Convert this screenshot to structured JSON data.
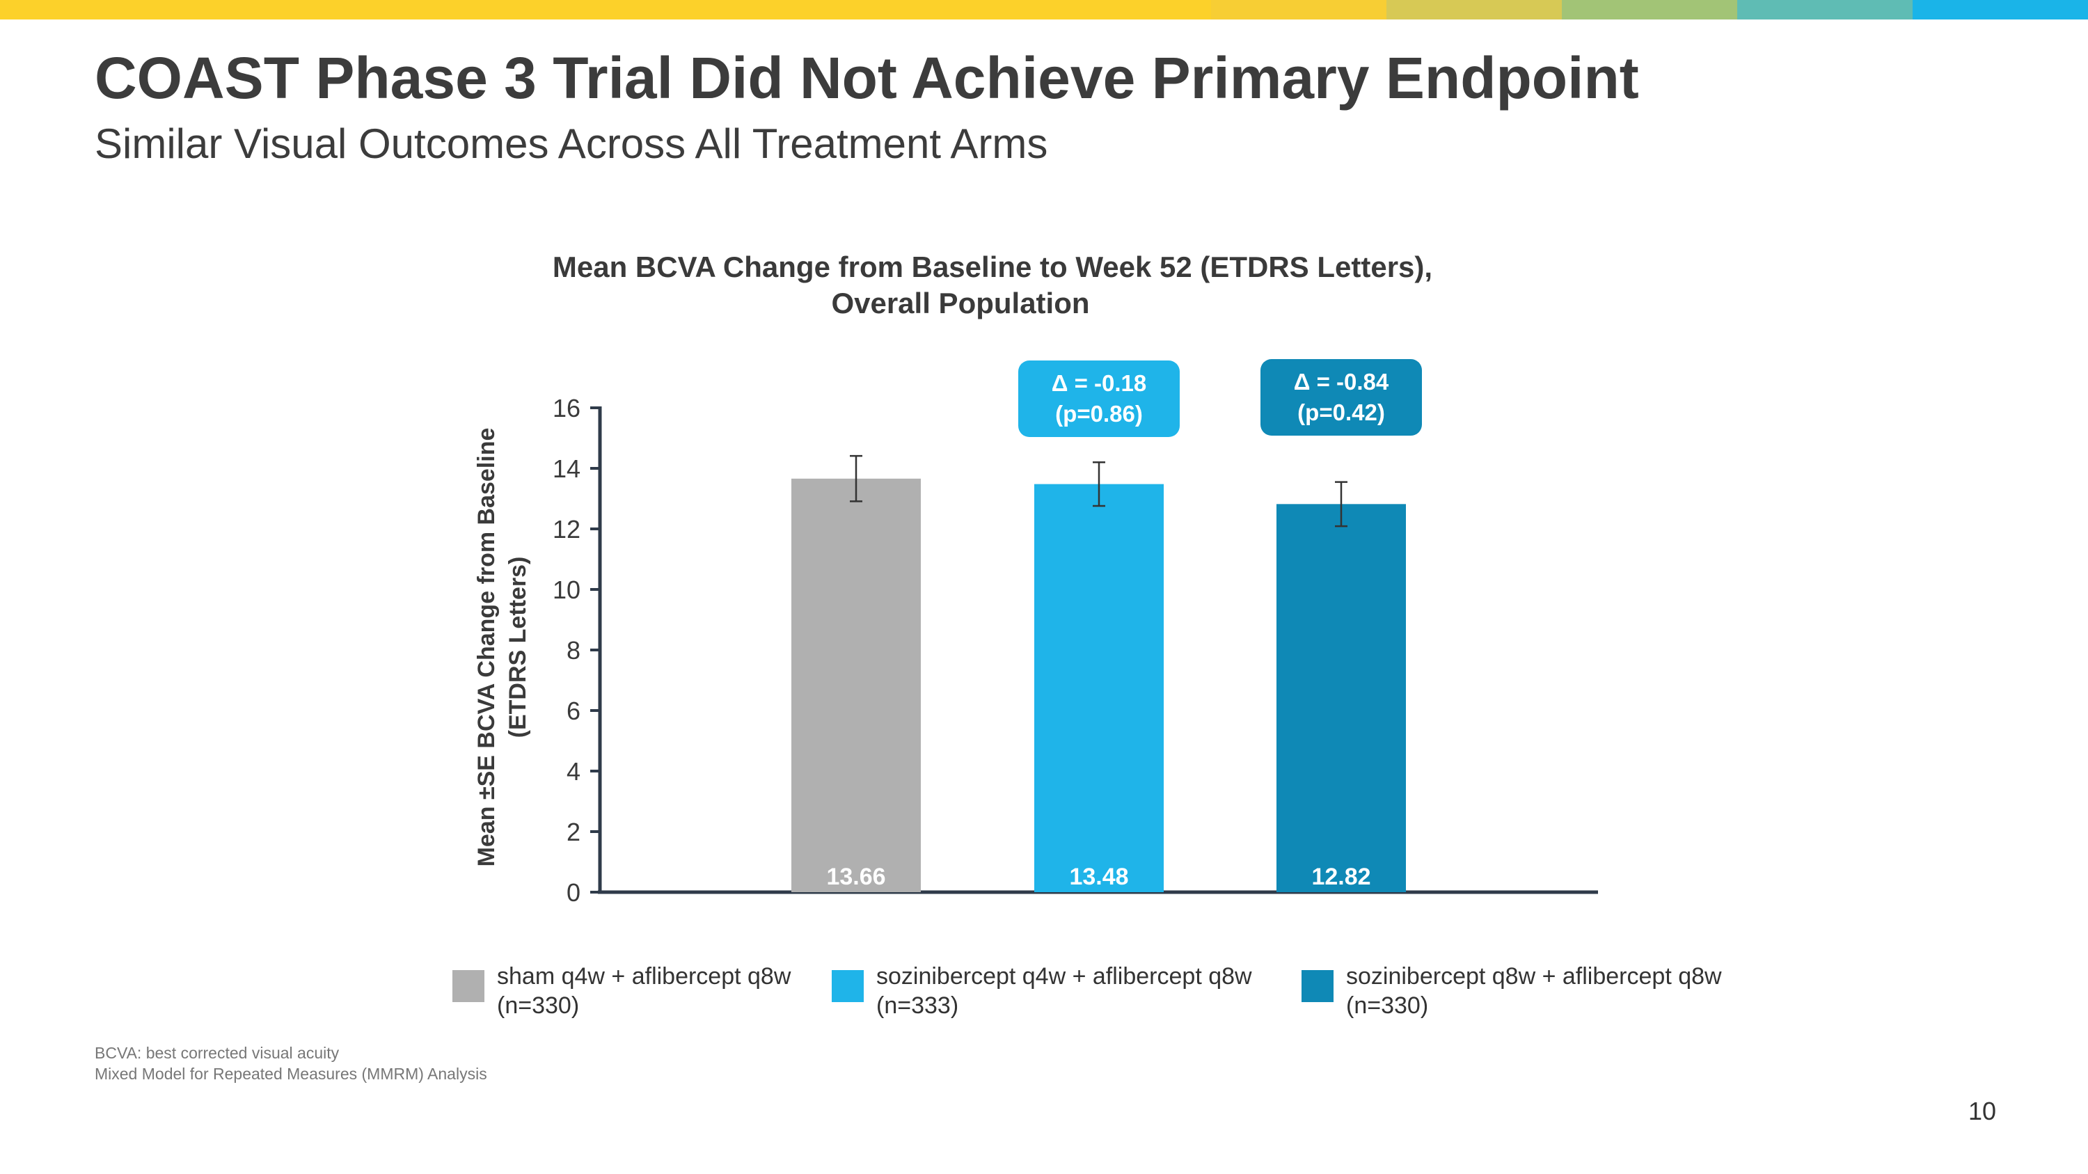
{
  "slide": {
    "title": "COAST Phase 3 Trial Did Not Achieve Primary Endpoint",
    "subtitle": "Similar Visual Outcomes Across All Treatment Arms",
    "page_number": "10",
    "footnotes": [
      "BCVA: best corrected visual acuity",
      "Mixed Model for Repeated Measures (MMRM) Analysis"
    ]
  },
  "colors": {
    "topbar": [
      "#fcd12a",
      "#f7ce34",
      "#d7c955",
      "#a2c476",
      "#5fbcb4",
      "#1ab4e8"
    ],
    "sham": "#b0b0b0",
    "soz_q4w": "#1fb4e9",
    "soz_q8w": "#0f89b6",
    "axis": "#2f3b4a"
  },
  "chart_data": {
    "type": "bar",
    "title": "Mean BCVA Change from Baseline to Week 52 (ETDRS Letters),",
    "title_line2": "Overall Population",
    "ylabel_line1": "Mean ±SE BCVA Change from Baseline",
    "ylabel_line2": "(ETDRS Letters)",
    "xlabel": "",
    "ylim": [
      0,
      16
    ],
    "yticks": [
      0,
      2,
      4,
      6,
      8,
      10,
      12,
      14,
      16
    ],
    "grid": false,
    "categories": [
      "sham q4w + aflibercept q8w",
      "sozinibercept q4w + aflibercept q8w",
      "sozinibercept q8w + aflibercept q8w"
    ],
    "values": [
      13.66,
      13.48,
      12.82
    ],
    "value_labels": [
      "13.66",
      "13.48",
      "12.82"
    ],
    "se": [
      0.75,
      0.72,
      0.73
    ],
    "legend": [
      {
        "line1": "sham q4w + aflibercept q8w",
        "line2": "(n=330)"
      },
      {
        "line1": "sozinibercept q4w + aflibercept q8w",
        "line2": "(n=333)"
      },
      {
        "line1": "sozinibercept q8w + aflibercept q8w",
        "line2": "(n=330)"
      }
    ],
    "annotations": [
      {
        "category": 1,
        "line1": "Δ = -0.18",
        "line2": "(p=0.86)"
      },
      {
        "category": 2,
        "line1": "Δ = -0.84",
        "line2": "(p=0.42)"
      }
    ],
    "legend_position": "bottom"
  }
}
